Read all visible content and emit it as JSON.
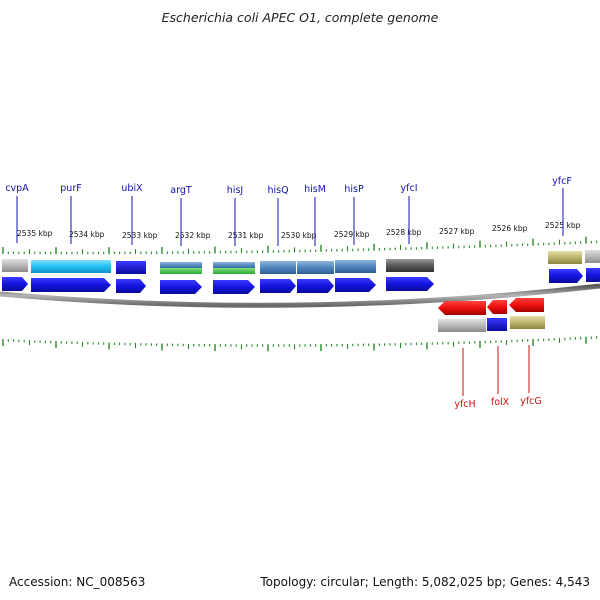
{
  "title": "Escherichia coli APEC O1, complete genome",
  "footer": {
    "accession": "Accession: NC_008563",
    "summary": "Topology: circular; Length: 5,082,025 bp; Genes: 4,543"
  },
  "colors": {
    "forward_label": "#1010b0",
    "reverse_label": "#d01010",
    "tick": "#2a8a2a",
    "backbone": "#888888",
    "cds_forward": "#1a1aee",
    "cds_reverse": "#ee1111"
  },
  "scale_labels": [
    "2535 kbp",
    "2534 kbp",
    "2533 kbp",
    "2532 kbp",
    "2531 kbp",
    "2530 kbp",
    "2529 kbp",
    "2528 kbp",
    "2527 kbp",
    "2526 kbp",
    "2525 kbp"
  ],
  "genes_forward": [
    {
      "name": "cvpA"
    },
    {
      "name": "purF"
    },
    {
      "name": "ubiX"
    },
    {
      "name": "argT"
    },
    {
      "name": "hisJ"
    },
    {
      "name": "hisQ"
    },
    {
      "name": "hisM"
    },
    {
      "name": "hisP"
    },
    {
      "name": "yfcI"
    },
    {
      "name": "yfcF"
    }
  ],
  "genes_reverse": [
    {
      "name": "yfcH"
    },
    {
      "name": "folX"
    },
    {
      "name": "yfcG"
    }
  ]
}
